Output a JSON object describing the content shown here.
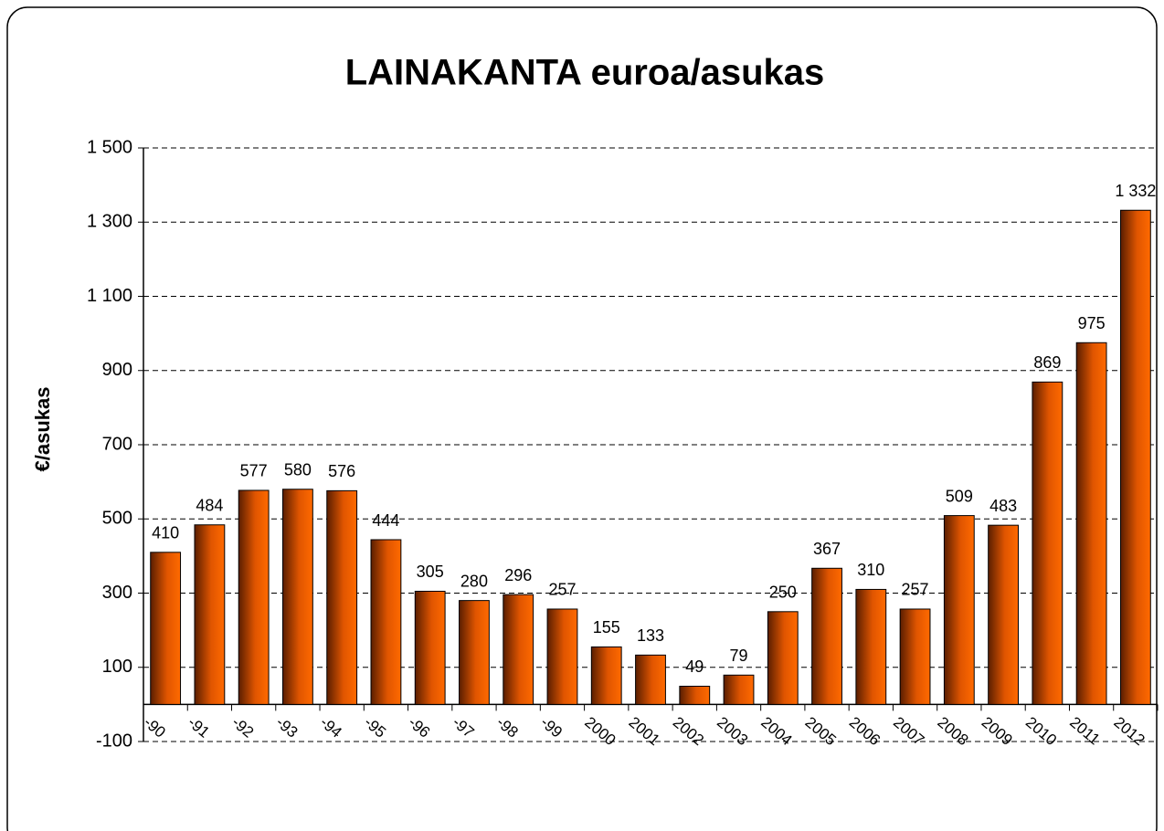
{
  "chart_data": {
    "type": "bar",
    "title": "LAINAKANTA  euroa/asukas",
    "y_label": "€/asukas",
    "categories": [
      "-90",
      "-91",
      "-92",
      "-93",
      "-94",
      "-95",
      "-96",
      "-97",
      "-98",
      "-99",
      "2000",
      "2001",
      "2002",
      "2003",
      "2004",
      "2005",
      "2006",
      "2007",
      "2008",
      "2009",
      "2010",
      "2011",
      "2012"
    ],
    "values": [
      410,
      484,
      577,
      580,
      576,
      444,
      305,
      280,
      296,
      257,
      155,
      133,
      49,
      79,
      250,
      367,
      310,
      257,
      509,
      483,
      869,
      975,
      1332
    ],
    "value_labels": [
      "410",
      "484",
      "577",
      "580",
      "576",
      "444",
      "305",
      "280",
      "296",
      "257",
      "155",
      "133",
      "49",
      "79",
      "250",
      "367",
      "310",
      "257",
      "509",
      "483",
      "869",
      "975",
      "1 332"
    ],
    "color": "#ff6600",
    "ylim": [
      -100,
      1500
    ],
    "yticks": [
      -100,
      100,
      300,
      500,
      700,
      900,
      {
        "value": 1100,
        "label": "1 100"
      },
      {
        "value": 1300,
        "label": "1 300"
      },
      {
        "value": 1500,
        "label": "1 500"
      }
    ],
    "grid": true
  }
}
